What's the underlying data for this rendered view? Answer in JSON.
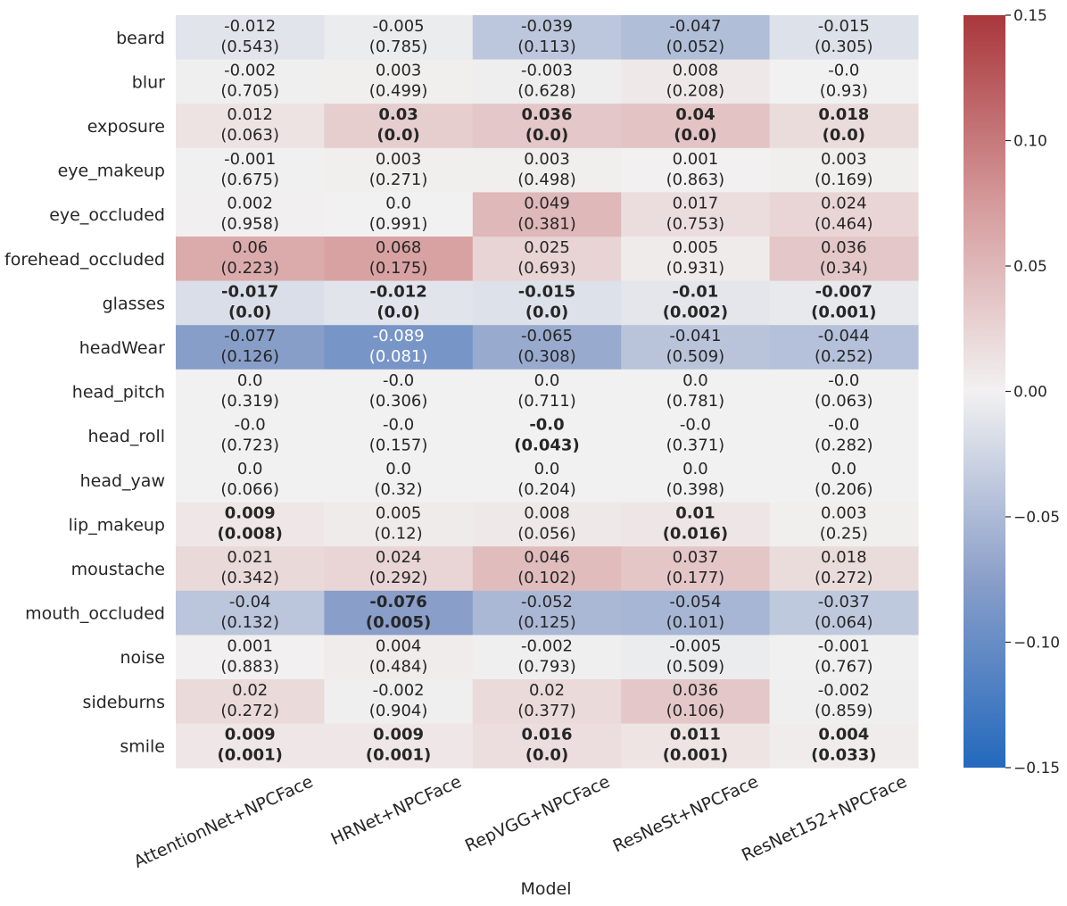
{
  "chart_data": {
    "type": "heatmap",
    "title": "",
    "xlabel": "Model",
    "ylabel": "",
    "x_categories": [
      "AttentionNet+NPCFace",
      "HRNet+NPCFace",
      "RepVGG+NPCFace",
      "ResNeSt+NPCFace",
      "ResNet152+NPCFace"
    ],
    "y_categories": [
      "beard",
      "blur",
      "exposure",
      "eye_makeup",
      "eye_occluded",
      "forehead_occluded",
      "glasses",
      "headWear",
      "head_pitch",
      "head_roll",
      "head_yaw",
      "lip_makeup",
      "moustache",
      "mouth_occluded",
      "noise",
      "sideburns",
      "smile"
    ],
    "values": [
      [
        "-0.012",
        "-0.005",
        "-0.039",
        "-0.047",
        "-0.015"
      ],
      [
        "-0.002",
        "0.003",
        "-0.003",
        "0.008",
        "-0.0"
      ],
      [
        "0.012",
        "0.03",
        "0.036",
        "0.04",
        "0.018"
      ],
      [
        "-0.001",
        "0.003",
        "0.003",
        "0.001",
        "0.003"
      ],
      [
        "0.002",
        "0.0",
        "0.049",
        "0.017",
        "0.024"
      ],
      [
        "0.06",
        "0.068",
        "0.025",
        "0.005",
        "0.036"
      ],
      [
        "-0.017",
        "-0.012",
        "-0.015",
        "-0.01",
        "-0.007"
      ],
      [
        "-0.077",
        "-0.089",
        "-0.065",
        "-0.041",
        "-0.044"
      ],
      [
        "0.0",
        "-0.0",
        "0.0",
        "0.0",
        "-0.0"
      ],
      [
        "-0.0",
        "-0.0",
        "-0.0",
        "-0.0",
        "-0.0"
      ],
      [
        "0.0",
        "0.0",
        "0.0",
        "0.0",
        "0.0"
      ],
      [
        "0.009",
        "0.005",
        "0.008",
        "0.01",
        "0.003"
      ],
      [
        "0.021",
        "0.024",
        "0.046",
        "0.037",
        "0.018"
      ],
      [
        "-0.04",
        "-0.076",
        "-0.052",
        "-0.054",
        "-0.037"
      ],
      [
        "0.001",
        "0.004",
        "-0.002",
        "-0.005",
        "-0.001"
      ],
      [
        "0.02",
        "-0.002",
        "0.02",
        "0.036",
        "-0.002"
      ],
      [
        "0.009",
        "0.009",
        "0.016",
        "0.011",
        "0.004"
      ]
    ],
    "p_values": [
      [
        "(0.543)",
        "(0.785)",
        "(0.113)",
        "(0.052)",
        "(0.305)"
      ],
      [
        "(0.705)",
        "(0.499)",
        "(0.628)",
        "(0.208)",
        "(0.93)"
      ],
      [
        "(0.063)",
        "(0.0)",
        "(0.0)",
        "(0.0)",
        "(0.0)"
      ],
      [
        "(0.675)",
        "(0.271)",
        "(0.498)",
        "(0.863)",
        "(0.169)"
      ],
      [
        "(0.958)",
        "(0.991)",
        "(0.381)",
        "(0.753)",
        "(0.464)"
      ],
      [
        "(0.223)",
        "(0.175)",
        "(0.693)",
        "(0.931)",
        "(0.34)"
      ],
      [
        "(0.0)",
        "(0.0)",
        "(0.0)",
        "(0.002)",
        "(0.001)"
      ],
      [
        "(0.126)",
        "(0.081)",
        "(0.308)",
        "(0.509)",
        "(0.252)"
      ],
      [
        "(0.319)",
        "(0.306)",
        "(0.711)",
        "(0.781)",
        "(0.063)"
      ],
      [
        "(0.723)",
        "(0.157)",
        "(0.043)",
        "(0.371)",
        "(0.282)"
      ],
      [
        "(0.066)",
        "(0.32)",
        "(0.204)",
        "(0.398)",
        "(0.206)"
      ],
      [
        "(0.008)",
        "(0.12)",
        "(0.056)",
        "(0.016)",
        "(0.25)"
      ],
      [
        "(0.342)",
        "(0.292)",
        "(0.102)",
        "(0.177)",
        "(0.272)"
      ],
      [
        "(0.132)",
        "(0.005)",
        "(0.125)",
        "(0.101)",
        "(0.064)"
      ],
      [
        "(0.883)",
        "(0.484)",
        "(0.793)",
        "(0.509)",
        "(0.767)"
      ],
      [
        "(0.272)",
        "(0.904)",
        "(0.377)",
        "(0.106)",
        "(0.859)"
      ],
      [
        "(0.001)",
        "(0.001)",
        "(0.0)",
        "(0.001)",
        "(0.033)"
      ]
    ],
    "significant": [
      [
        false,
        false,
        false,
        false,
        false
      ],
      [
        false,
        false,
        false,
        false,
        false
      ],
      [
        false,
        true,
        true,
        true,
        true
      ],
      [
        false,
        false,
        false,
        false,
        false
      ],
      [
        false,
        false,
        false,
        false,
        false
      ],
      [
        false,
        false,
        false,
        false,
        false
      ],
      [
        true,
        true,
        true,
        true,
        true
      ],
      [
        false,
        false,
        false,
        false,
        false
      ],
      [
        false,
        false,
        false,
        false,
        false
      ],
      [
        false,
        false,
        true,
        false,
        false
      ],
      [
        false,
        false,
        false,
        false,
        false
      ],
      [
        true,
        false,
        false,
        true,
        false
      ],
      [
        false,
        false,
        false,
        false,
        false
      ],
      [
        false,
        true,
        false,
        false,
        false
      ],
      [
        false,
        false,
        false,
        false,
        false
      ],
      [
        false,
        false,
        false,
        false,
        false
      ],
      [
        true,
        true,
        true,
        true,
        true
      ]
    ],
    "colorbar": {
      "vmin": -0.15,
      "vmax": 0.15,
      "ticks": [
        "0.15",
        "0.10",
        "0.05",
        "0.00",
        "−0.05",
        "−0.10",
        "−0.15"
      ],
      "tick_values": [
        0.15,
        0.1,
        0.05,
        0.0,
        -0.05,
        -0.1,
        -0.15
      ],
      "colormap": "vlag",
      "low_color": "#2369bd",
      "mid_color": "#f2f1f1",
      "high_color": "#a9373b"
    }
  }
}
